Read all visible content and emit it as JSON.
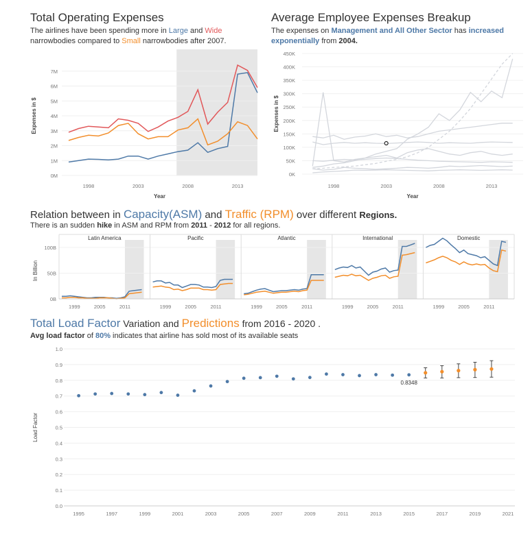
{
  "section1": {
    "title": "Total Operating Expenses",
    "sub_a": "The airlines have been spending more in ",
    "sub_large": "Large",
    "sub_and": " and ",
    "sub_wide": "Wide",
    "sub_b": "narrowbodies compared to ",
    "sub_small": "Small",
    "sub_c": " narrowbodies after 2007."
  },
  "section2": {
    "title": "Average Employee Expenses Breakup",
    "sub_a": "The expenses on ",
    "sub_mgmt": "Management and All Other Sector",
    "sub_has": "  has  ",
    "sub_inc": "increased",
    "sub_exp": "exponentially",
    "sub_from": " from ",
    "sub_year": "2004."
  },
  "section3": {
    "t1": "Relation between in ",
    "t_cap": "Capacity(ASM)",
    "t_and": " and ",
    "t_traffic": "Traffic (RPM)",
    "t_over": " over different ",
    "t_regions": "Regions.",
    "sub_a": "There is an sudden ",
    "sub_hike": "hike",
    "sub_b": " in ASM and RPM from ",
    "sub_y1": "2011",
    "sub_dash": " - ",
    "sub_y2": "2012",
    "sub_c": "  for all regions."
  },
  "section4": {
    "t_total": "Total Load Factor",
    "t_var": "  Variation  and ",
    "t_pred": "Predictions",
    "t_from": " from 2016 - 2020 .",
    "sub_a": "Avg load factor",
    "sub_of": "  of ",
    "sub_pct": "80%",
    "sub_b": " indicates that airline has sold most of its available seats"
  },
  "colors": {
    "blue": "#4e79a7",
    "orange": "#f28e2b",
    "red": "#e15759",
    "shade": "#e6e6e6",
    "grey_line": "#d3d6dc"
  },
  "chart_data": [
    {
      "id": "operating-expenses",
      "type": "line",
      "xlabel": "Year",
      "ylabel": "Expenses in $",
      "xlim": [
        1996,
        2014
      ],
      "xticks": [
        1998,
        2003,
        2008,
        2013
      ],
      "ylim": [
        0,
        8000000
      ],
      "yticks": [
        0,
        1000000,
        2000000,
        3000000,
        4000000,
        5000000,
        6000000,
        7000000
      ],
      "ytick_labels": [
        "0M",
        "1M",
        "2M",
        "3M",
        "4M",
        "5M",
        "6M",
        "7M"
      ],
      "highlight_range": [
        2007,
        2015
      ],
      "x": [
        1996,
        1997,
        1998,
        1999,
        2000,
        2001,
        2002,
        2003,
        2004,
        2005,
        2006,
        2007,
        2008,
        2009,
        2010,
        2011,
        2012,
        2013,
        2014,
        2015
      ],
      "series": [
        {
          "name": "Large",
          "color": "#4e79a7",
          "values": [
            900000,
            1000000,
            1100000,
            1080000,
            1050000,
            1100000,
            1300000,
            1300000,
            1100000,
            1300000,
            1450000,
            1600000,
            1700000,
            2200000,
            1550000,
            1800000,
            1950000,
            6800000,
            6900000,
            5550000
          ]
        },
        {
          "name": "Wide",
          "color": "#e15759",
          "values": [
            2900000,
            3150000,
            3300000,
            3250000,
            3200000,
            3800000,
            3700000,
            3500000,
            2950000,
            3250000,
            3650000,
            3900000,
            4300000,
            5750000,
            3450000,
            4250000,
            4900000,
            7400000,
            7050000,
            5900000
          ]
        },
        {
          "name": "Small",
          "color": "#f28e2b",
          "values": [
            2350000,
            2550000,
            2700000,
            2650000,
            2850000,
            3350000,
            3500000,
            2800000,
            2450000,
            2600000,
            2600000,
            3050000,
            3200000,
            3800000,
            2050000,
            2300000,
            2800000,
            3600000,
            3350000,
            2450000
          ]
        }
      ]
    },
    {
      "id": "employee-expenses",
      "type": "line",
      "xlabel": "Year",
      "ylabel": "Expenses in $",
      "xlim": [
        1995,
        2016
      ],
      "xticks": [
        1998,
        2003,
        2008,
        2013
      ],
      "ylim": [
        0,
        450000
      ],
      "yticks": [
        0,
        50000,
        100000,
        150000,
        200000,
        250000,
        300000,
        350000,
        400000,
        450000
      ],
      "ytick_labels": [
        "0K",
        "50K",
        "100K",
        "150K",
        "200K",
        "250K",
        "300K",
        "350K",
        "400K",
        "450K"
      ],
      "x": [
        1996,
        1997,
        1998,
        1999,
        2000,
        2001,
        2002,
        2003,
        2004,
        2005,
        2006,
        2007,
        2008,
        2009,
        2010,
        2011,
        2012,
        2013,
        2014,
        2015
      ],
      "highlight_point": {
        "x": 2003,
        "y": 115000
      },
      "series": [
        {
          "values": [
            25000,
            30000,
            38000,
            42000,
            50000,
            60000,
            75000,
            85000,
            95000,
            130000,
            150000,
            175000,
            225000,
            200000,
            240000,
            305000,
            270000,
            310000,
            285000,
            430000
          ]
        },
        {
          "values": [
            20000,
            22000,
            25000,
            27000,
            30000,
            35000,
            40000,
            48000,
            55000,
            65000,
            80000,
            100000,
            130000,
            160000,
            200000,
            245000,
            300000,
            355000,
            410000,
            450000
          ]
        },
        {
          "values": [
            140000,
            135000,
            145000,
            130000,
            138000,
            142000,
            150000,
            140000,
            145000,
            135000,
            140000,
            150000,
            160000,
            165000,
            170000,
            175000,
            180000,
            185000,
            190000,
            190000
          ]
        },
        {
          "values": [
            30000,
            305000,
            50000,
            45000,
            55000,
            60000,
            65000,
            70000,
            60000,
            80000,
            90000,
            95000,
            85000,
            75000,
            70000,
            80000,
            85000,
            75000,
            70000,
            75000
          ]
        },
        {
          "values": [
            120000,
            110000,
            115000,
            118000,
            115000,
            117000,
            115000,
            114000,
            116000,
            118000,
            120000,
            118000,
            115000,
            117000,
            116000,
            115000,
            118000,
            120000,
            119000,
            118000
          ]
        },
        {
          "values": [
            50000,
            48000,
            52000,
            55000,
            53000,
            55000,
            58000,
            60000,
            58000,
            55000,
            52000,
            50000,
            48000,
            47000,
            46000,
            45000,
            44000,
            46000,
            45000,
            44000
          ]
        },
        {
          "values": [
            20000,
            15000,
            18000,
            25000,
            22000,
            20000,
            18000,
            20000,
            22000,
            25000,
            24000,
            22000,
            25000,
            30000,
            28000,
            30000,
            32000,
            30000,
            28000,
            30000
          ]
        },
        {
          "values": [
            5000,
            8000,
            10000,
            12000,
            15000,
            14000,
            15000,
            16000,
            15000,
            14000,
            13000,
            12000,
            14000,
            15000,
            16000,
            15000,
            14000,
            15000,
            16000,
            15000
          ]
        }
      ]
    },
    {
      "id": "asm-rpm-regions",
      "type": "line",
      "ylabel": "In Billion",
      "ylim": [
        0,
        120
      ],
      "yticks": [
        0,
        50,
        100
      ],
      "ytick_labels": [
        "0B",
        "50B",
        "100B"
      ],
      "xlim": [
        1996,
        2016
      ],
      "xticks": [
        1999,
        2005,
        2011
      ],
      "highlight_range": [
        2011,
        2015.5
      ],
      "x": [
        1996,
        1997,
        1998,
        1999,
        2000,
        2001,
        2002,
        2003,
        2004,
        2005,
        2006,
        2007,
        2008,
        2009,
        2010,
        2011,
        2012,
        2013,
        2014,
        2015
      ],
      "panels": [
        {
          "region": "Latin America",
          "asm": [
            5,
            5,
            6,
            5,
            4,
            3,
            2,
            2,
            3,
            3,
            3,
            2,
            2,
            1,
            2,
            4,
            15,
            16,
            17,
            18
          ],
          "rpm": [
            2,
            2,
            3,
            3,
            2,
            2,
            1,
            1,
            1,
            2,
            2,
            2,
            1,
            0,
            1,
            2,
            10,
            11,
            12,
            13
          ]
        },
        {
          "region": "Pacific",
          "asm": [
            33,
            35,
            35,
            31,
            32,
            27,
            27,
            22,
            25,
            28,
            28,
            27,
            23,
            23,
            22,
            24,
            36,
            38,
            38,
            38
          ],
          "rpm": [
            23,
            24,
            25,
            23,
            22,
            18,
            19,
            16,
            18,
            21,
            21,
            21,
            18,
            18,
            17,
            18,
            28,
            29,
            30,
            30
          ]
        },
        {
          "region": "Atlantic",
          "asm": [
            10,
            11,
            14,
            17,
            19,
            20,
            17,
            14,
            15,
            16,
            16,
            17,
            18,
            17,
            19,
            20,
            47,
            47,
            47,
            47
          ],
          "rpm": [
            8,
            9,
            11,
            13,
            14,
            15,
            13,
            11,
            12,
            13,
            13,
            14,
            15,
            14,
            16,
            17,
            36,
            36,
            36,
            36
          ]
        },
        {
          "region": "International",
          "asm": [
            57,
            60,
            62,
            61,
            65,
            60,
            62,
            54,
            46,
            52,
            54,
            58,
            60,
            52,
            55,
            56,
            102,
            102,
            105,
            108
          ],
          "rpm": [
            42,
            44,
            46,
            45,
            48,
            45,
            46,
            41,
            36,
            40,
            42,
            45,
            46,
            40,
            43,
            44,
            85,
            86,
            88,
            90
          ]
        },
        {
          "region": "Domestic",
          "asm": [
            100,
            104,
            106,
            112,
            118,
            113,
            105,
            98,
            90,
            95,
            88,
            86,
            84,
            80,
            82,
            75,
            68,
            65,
            112,
            110
          ],
          "rpm": [
            70,
            73,
            76,
            80,
            83,
            80,
            75,
            72,
            67,
            72,
            68,
            66,
            68,
            66,
            67,
            60,
            55,
            53,
            95,
            93
          ]
        }
      ]
    },
    {
      "id": "load-factor",
      "type": "scatter",
      "ylabel": "Load Factor",
      "xlim": [
        1994,
        2021
      ],
      "xticks": [
        1995,
        1997,
        1999,
        2001,
        2003,
        2005,
        2007,
        2009,
        2011,
        2013,
        2015,
        2017,
        2019,
        2021
      ],
      "ylim": [
        0,
        1.0
      ],
      "yticks": [
        0,
        0.1,
        0.2,
        0.3,
        0.4,
        0.5,
        0.6,
        0.7,
        0.8,
        0.9,
        1.0
      ],
      "ytick_labels": [
        "0.0",
        "0.1",
        "0.2",
        "0.3",
        "0.4",
        "0.5",
        "0.6",
        "0.7",
        "0.8",
        "0.9",
        "1.0"
      ],
      "actual": {
        "name": "Total Load Factor",
        "x": [
          1995,
          1996,
          1997,
          1998,
          1999,
          2000,
          2001,
          2002,
          2003,
          2004,
          2005,
          2006,
          2007,
          2008,
          2009,
          2010,
          2011,
          2012,
          2013,
          2014,
          2015
        ],
        "y": [
          0.702,
          0.713,
          0.716,
          0.713,
          0.709,
          0.722,
          0.705,
          0.733,
          0.764,
          0.792,
          0.813,
          0.817,
          0.826,
          0.809,
          0.818,
          0.84,
          0.836,
          0.83,
          0.836,
          0.833,
          0.8348
        ]
      },
      "predictions": {
        "name": "Predictions",
        "x": [
          2016,
          2017,
          2018,
          2019,
          2020
        ],
        "y": [
          0.848,
          0.855,
          0.862,
          0.868,
          0.872
        ],
        "lower": [
          0.815,
          0.815,
          0.817,
          0.818,
          0.82
        ],
        "upper": [
          0.88,
          0.893,
          0.905,
          0.915,
          0.925
        ]
      },
      "annotation": {
        "x": 2015,
        "y": 0.8348,
        "text": "0.8348"
      }
    }
  ]
}
